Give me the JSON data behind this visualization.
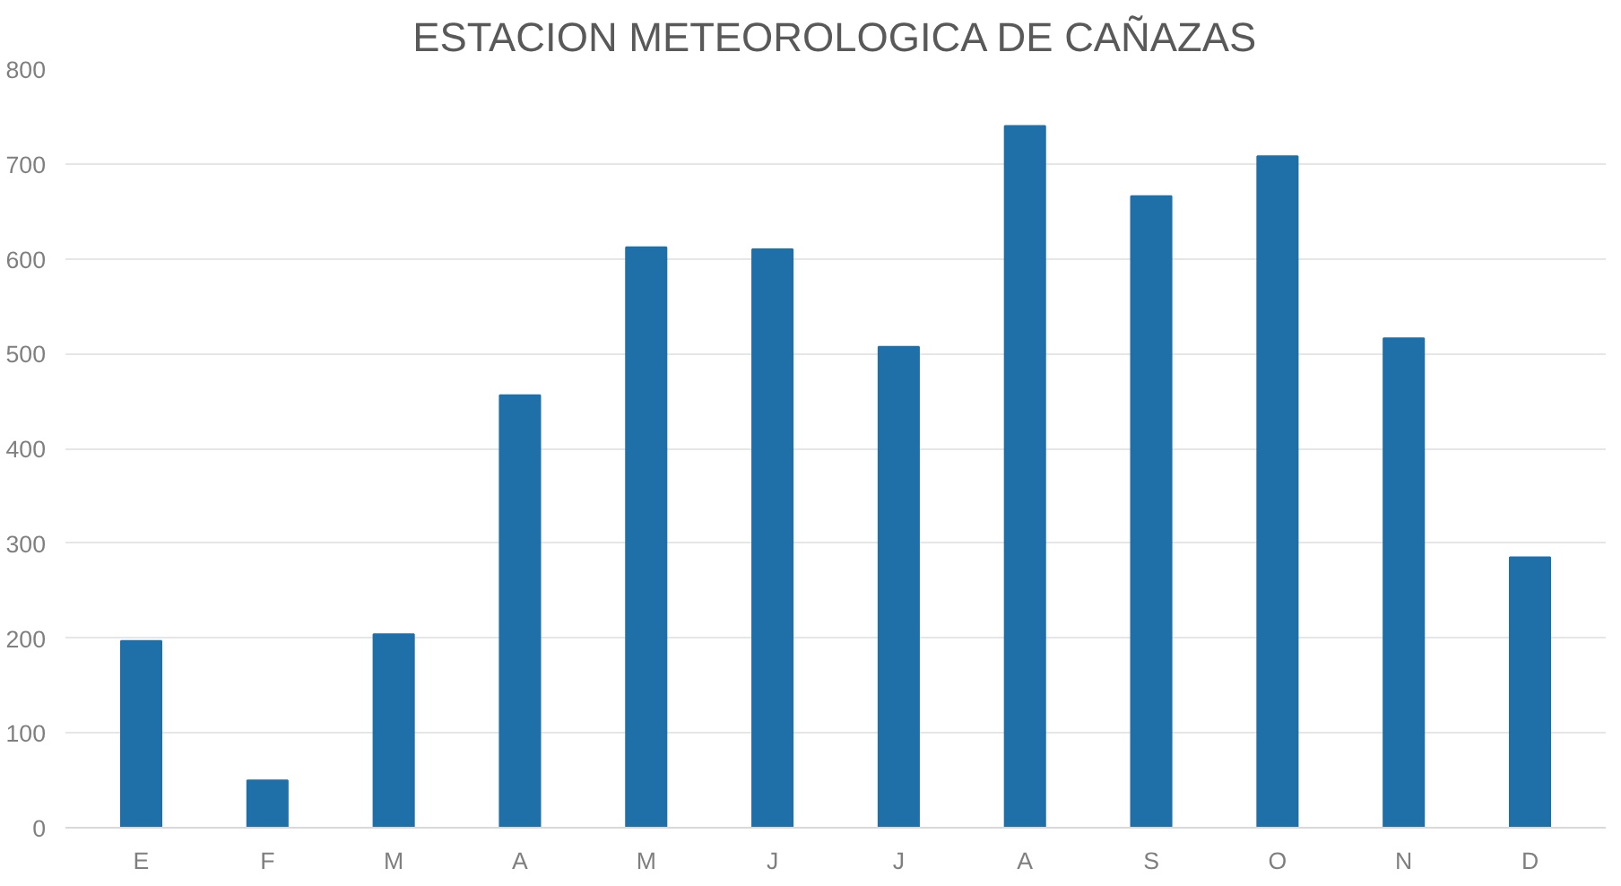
{
  "chart_data": {
    "type": "bar",
    "title": "ESTACION METEOROLOGICA DE CAÑAZAS",
    "categories": [
      "E",
      "F",
      "M",
      "A",
      "M",
      "J",
      "J",
      "A",
      "S",
      "O",
      "N",
      "D"
    ],
    "values": [
      197,
      50,
      204,
      456,
      612,
      610,
      507,
      740,
      666,
      708,
      516,
      285
    ],
    "color": "#1f6fa8",
    "ylim": [
      0,
      800
    ],
    "yticks": [
      0,
      100,
      200,
      300,
      400,
      500,
      600,
      700,
      800
    ],
    "grid": "y"
  }
}
